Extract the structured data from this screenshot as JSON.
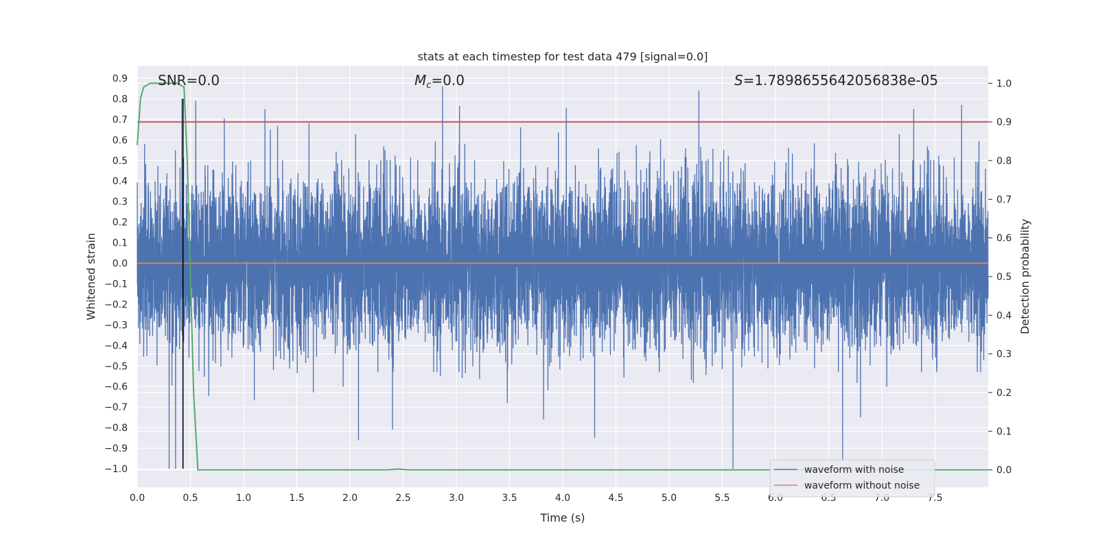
{
  "chart_data": {
    "type": "line",
    "title": "stats at each timestep for test data 479 [signal=0.0]",
    "xlabel": "Time (s)",
    "ylabel": "Whitened strain",
    "y2label": "Detection probability",
    "xlim": [
      0.0,
      8.0
    ],
    "ylim": [
      -1.09,
      0.96
    ],
    "y2lim": [
      -0.045,
      1.045
    ],
    "xticks": [
      "0.0",
      "0.5",
      "1.0",
      "1.5",
      "2.0",
      "2.5",
      "3.0",
      "3.5",
      "4.0",
      "4.5",
      "5.0",
      "5.5",
      "6.0",
      "6.5",
      "7.0",
      "7.5"
    ],
    "yticks": [
      "0.9",
      "0.8",
      "0.7",
      "0.6",
      "0.5",
      "0.4",
      "0.3",
      "0.2",
      "0.1",
      "0.0",
      "−0.1",
      "−0.2",
      "−0.3",
      "−0.4",
      "−0.5",
      "−0.6",
      "−0.7",
      "−0.8",
      "−0.9",
      "−1.0"
    ],
    "y2ticks": [
      "0.0",
      "0.1",
      "0.2",
      "0.3",
      "0.4",
      "0.5",
      "0.6",
      "0.7",
      "0.8",
      "0.9",
      "1.0"
    ],
    "grid": true,
    "legend_position": "bottom-right",
    "annotations": {
      "snr": "SNR=0.0",
      "mc_symbol": "M",
      "mc_sub": "c",
      "mc_value": "=0.0",
      "s_symbol": "S",
      "s_value": "=1.7898655642056838e-05"
    },
    "colors": {
      "noisy": "#4c72b0",
      "clean": "#dd8452",
      "prob": "#55a868",
      "threshold": "#c44e52",
      "marker": "#000000",
      "background": "#eaeaf2",
      "grid": "#ffffff"
    },
    "series": [
      {
        "name": "waveform with noise",
        "axis": "left",
        "description_style": "dense noise",
        "noise_sigma": 0.2,
        "peaks": [
          {
            "x": 0.3,
            "y": -1.0
          },
          {
            "x": 0.36,
            "y": -1.0
          },
          {
            "x": 0.42,
            "y": 0.8
          },
          {
            "x": 0.55,
            "y": 0.79
          },
          {
            "x": 2.87,
            "y": 0.86
          },
          {
            "x": 2.85,
            "y": -0.55
          },
          {
            "x": 5.28,
            "y": 0.84
          },
          {
            "x": 5.6,
            "y": -1.0
          },
          {
            "x": 2.08,
            "y": -0.86
          },
          {
            "x": 4.3,
            "y": -0.85
          },
          {
            "x": 3.82,
            "y": -0.76
          },
          {
            "x": 7.3,
            "y": 0.75
          },
          {
            "x": 7.75,
            "y": 0.77
          },
          {
            "x": 1.2,
            "y": 0.75
          },
          {
            "x": 6.8,
            "y": -0.75
          },
          {
            "x": 2.4,
            "y": -0.81
          }
        ]
      },
      {
        "name": "waveform without noise",
        "axis": "left",
        "x": [
          0.0,
          8.0
        ],
        "y": [
          0.0,
          0.0
        ]
      },
      {
        "name": "",
        "axis": "right",
        "x": [
          0.0,
          0.03,
          0.06,
          0.12,
          0.2,
          0.3,
          0.38,
          0.44,
          0.47,
          0.5,
          0.53,
          0.57,
          1.0,
          2.0,
          2.35,
          2.45,
          2.55,
          3.0,
          8.0
        ],
        "y": [
          0.84,
          0.96,
          0.99,
          1.0,
          1.0,
          1.0,
          1.0,
          0.99,
          0.8,
          0.5,
          0.2,
          0.0,
          0.0,
          0.0,
          0.0,
          0.002,
          0.0,
          0.0,
          0.0
        ]
      }
    ],
    "threshold_y2": 0.9,
    "marker_x": 0.43
  }
}
